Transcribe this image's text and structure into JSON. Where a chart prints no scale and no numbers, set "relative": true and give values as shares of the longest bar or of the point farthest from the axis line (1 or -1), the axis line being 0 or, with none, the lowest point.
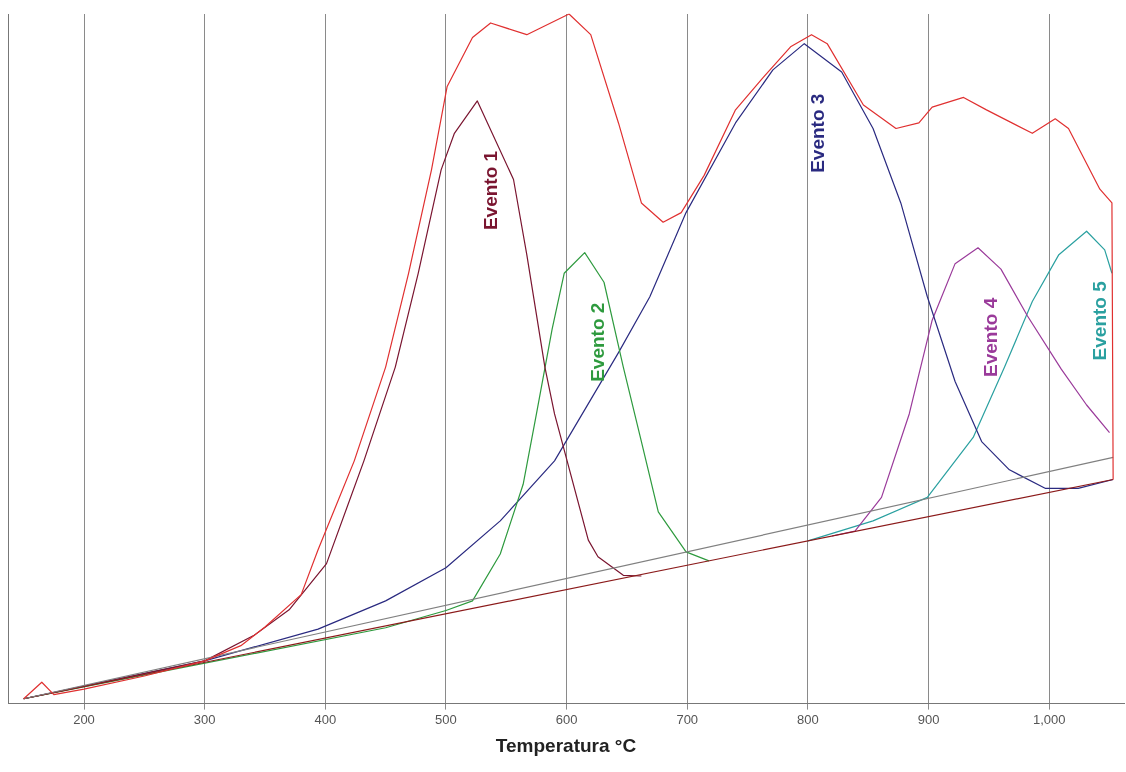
{
  "chart_data": {
    "type": "line",
    "xlabel": "Temperatura °C",
    "relative": true,
    "xlim": [
      137,
      1062
    ],
    "xticks": [
      200,
      300,
      400,
      500,
      600,
      700,
      800,
      900,
      {
        "value": 1000,
        "label": "1,000"
      }
    ],
    "grid": "x",
    "legend": false,
    "marker": "none",
    "line_style": "solid",
    "series": [
      {
        "color": "#e03030",
        "x": [
          150,
          165,
          175,
          200,
          250,
          300,
          330,
          350,
          380,
          394,
          424,
          450,
          469,
          488,
          501,
          522,
          537,
          567,
          602,
          620,
          643,
          662,
          680,
          695,
          714,
          740,
          763,
          786,
          803,
          816,
          846,
          873,
          892,
          903,
          929,
          948,
          986,
          1005,
          1016,
          1042,
          1052,
          1053
        ],
        "values": [
          0.007,
          0.031,
          0.013,
          0.021,
          0.04,
          0.062,
          0.084,
          0.111,
          0.158,
          0.223,
          0.352,
          0.488,
          0.624,
          0.774,
          0.895,
          0.966,
          0.987,
          0.97,
          1.0,
          0.97,
          0.842,
          0.726,
          0.698,
          0.712,
          0.766,
          0.861,
          0.908,
          0.953,
          0.97,
          0.957,
          0.868,
          0.834,
          0.842,
          0.865,
          0.879,
          0.861,
          0.827,
          0.848,
          0.834,
          0.746,
          0.726,
          0.325
        ]
      },
      {
        "color": "#808080",
        "x": [
          150,
          1053
        ],
        "values": [
          0.007,
          0.357
        ]
      },
      {
        "color": "#8b1a1a",
        "x": [
          150,
          1053
        ],
        "values": [
          0.007,
          0.325
        ]
      },
      {
        "name": "Evento 1",
        "color": "#7a1530",
        "x": [
          150,
          300,
          341,
          370,
          401,
          432,
          458,
          477,
          496,
          507,
          526,
          556,
          567,
          582,
          590,
          618,
          626,
          647,
          662
        ],
        "values": [
          0.007,
          0.062,
          0.099,
          0.136,
          0.203,
          0.352,
          0.488,
          0.624,
          0.774,
          0.827,
          0.874,
          0.76,
          0.651,
          0.488,
          0.42,
          0.237,
          0.213,
          0.186,
          0.185
        ]
      },
      {
        "name": "Evento 2",
        "color": "#2e9a3e",
        "x": [
          150,
          450,
          500,
          522,
          545,
          564,
          575,
          588,
          598,
          615,
          631,
          647,
          662,
          676,
          699,
          718
        ],
        "values": [
          0.007,
          0.11,
          0.135,
          0.149,
          0.217,
          0.318,
          0.42,
          0.543,
          0.624,
          0.654,
          0.611,
          0.488,
          0.38,
          0.278,
          0.22,
          0.207
        ]
      },
      {
        "name": "Evento 3",
        "color": "#2a2a80",
        "x": [
          150,
          300,
          394,
          450,
          500,
          545,
          590,
          643,
          669,
          699,
          740,
          771,
          797,
          828,
          854,
          877,
          899,
          922,
          944,
          967,
          997,
          1024,
          1053
        ],
        "values": [
          0.007,
          0.062,
          0.108,
          0.149,
          0.197,
          0.265,
          0.352,
          0.509,
          0.59,
          0.712,
          0.842,
          0.919,
          0.957,
          0.916,
          0.834,
          0.726,
          0.59,
          0.467,
          0.38,
          0.339,
          0.312,
          0.312,
          0.325
        ]
      },
      {
        "name": "Evento 4",
        "color": "#9a3a9a",
        "x": [
          820,
          839,
          861,
          884,
          903,
          922,
          941,
          960,
          982,
          1010,
          1031,
          1050
        ],
        "values": [
          0.243,
          0.25,
          0.299,
          0.42,
          0.556,
          0.638,
          0.661,
          0.63,
          0.562,
          0.485,
          0.433,
          0.393
        ]
      },
      {
        "name": "Evento 5",
        "color": "#2aa0a0",
        "x": [
          800,
          854,
          899,
          937,
          963,
          986,
          1008,
          1031,
          1046,
          1052
        ],
        "values": [
          0.236,
          0.265,
          0.299,
          0.386,
          0.488,
          0.583,
          0.651,
          0.685,
          0.658,
          0.624
        ]
      }
    ]
  }
}
